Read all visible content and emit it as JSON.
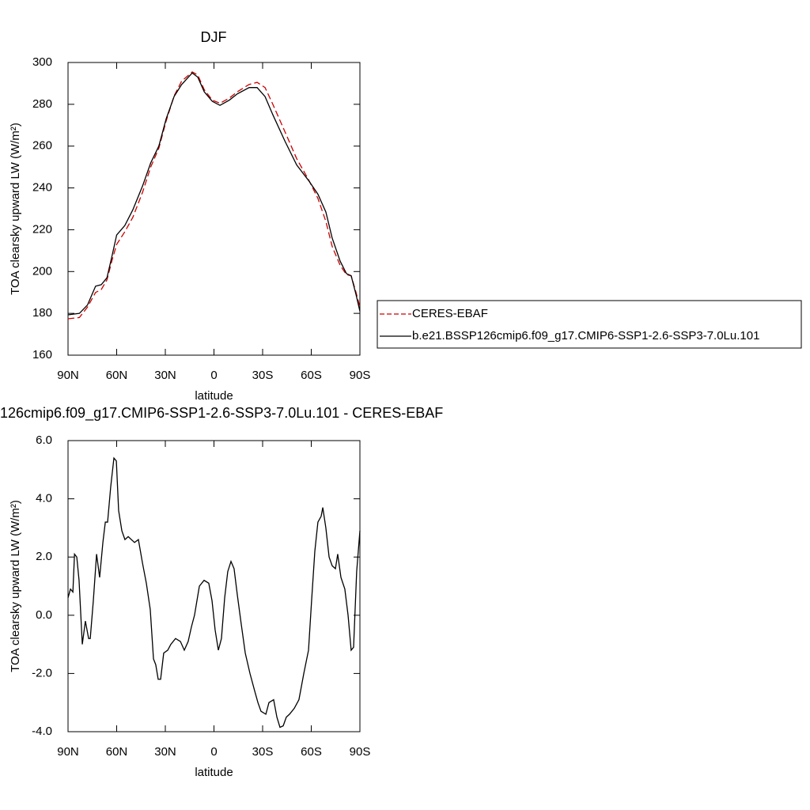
{
  "chart_data": [
    {
      "type": "line",
      "title": "DJF",
      "xlabel": "latitude",
      "ylabel": "TOA clearsky upward LW (W/m²)",
      "xlim": [
        90,
        -90
      ],
      "xticks": [
        {
          "value": 90,
          "label": "90N"
        },
        {
          "value": 60,
          "label": "60N"
        },
        {
          "value": 30,
          "label": "30N"
        },
        0,
        {
          "value": -30,
          "label": "30S"
        },
        {
          "value": -60,
          "label": "60S"
        },
        {
          "value": -90,
          "label": "90S"
        }
      ],
      "ylim": [
        160,
        300
      ],
      "yticks": [
        160,
        180,
        200,
        220,
        240,
        260,
        280,
        300
      ],
      "legend": "right",
      "x": [
        90,
        83,
        78,
        73,
        69.5,
        66,
        63,
        60,
        55,
        50,
        44,
        39,
        34,
        29.5,
        24.6,
        20,
        13.4,
        10,
        6,
        1,
        -3.7,
        -9.5,
        -14.4,
        -21.7,
        -26.6,
        -31.5,
        -36.3,
        -43.7,
        -51,
        -58.3,
        -64.1,
        -69,
        -72.9,
        -77.8,
        -81.7,
        -84.6,
        -87.6,
        -90
      ],
      "series": [
        {
          "name": "CERES-EBAF",
          "color": "#cc0000",
          "dash": "dashed",
          "values": [
            177.4,
            178,
            183,
            190,
            191.4,
            196,
            205,
            213,
            219,
            226,
            238,
            250,
            259,
            272,
            284,
            291,
            295.5,
            294,
            287,
            282,
            280.5,
            283,
            286,
            289.5,
            290.5,
            288,
            280,
            267,
            254,
            244,
            235,
            224,
            212,
            203,
            198.5,
            198,
            190,
            183
          ]
        },
        {
          "name": "b.e21.BSSP126cmip6.f09_g17.CMIP6-SSP1-2.6-SSP3-7.0Lu.101",
          "color": "#000000",
          "dash": "solid",
          "values": [
            179.3,
            180,
            184,
            193,
            193.7,
            197,
            207,
            217.5,
            222,
            229.6,
            241,
            252,
            260,
            273,
            283.7,
            289.4,
            295,
            293,
            286,
            281.4,
            279.5,
            282,
            285,
            288,
            288,
            283.7,
            275,
            262.5,
            251,
            243.6,
            237,
            228.5,
            216,
            205,
            199,
            198,
            189,
            181
          ]
        }
      ]
    },
    {
      "type": "line",
      "title": "126cmip6.f09_g17.CMIP6-SSP1-2.6-SSP3-7.0Lu.101 - CERES-EBAF",
      "xlabel": "latitude",
      "ylabel": "TOA clearsky upward LW (W/m²)",
      "xlim": [
        90,
        -90
      ],
      "xticks": [
        {
          "value": 90,
          "label": "90N"
        },
        {
          "value": 60,
          "label": "60N"
        },
        {
          "value": 30,
          "label": "30N"
        },
        0,
        {
          "value": -30,
          "label": "30S"
        },
        {
          "value": -60,
          "label": "60S"
        },
        {
          "value": -90,
          "label": "90S"
        }
      ],
      "ylim": [
        -4,
        6
      ],
      "yticks": [
        {
          "value": -4,
          "label": "-4.0"
        },
        {
          "value": -2,
          "label": "-2.0"
        },
        {
          "value": 0,
          "label": "0.0"
        },
        {
          "value": 2,
          "label": "2.0"
        },
        {
          "value": 4,
          "label": "4.0"
        },
        {
          "value": 6,
          "label": "6.0"
        }
      ],
      "x": [
        90,
        88.5,
        87,
        86,
        84.6,
        83.2,
        81.2,
        79.3,
        77.3,
        76.3,
        74.4,
        72.4,
        70.5,
        68.5,
        67,
        65.6,
        63.7,
        61.7,
        60.2,
        58.8,
        56.8,
        54.9,
        52.9,
        49,
        46.6,
        44.1,
        41.7,
        39.3,
        37.3,
        35.9,
        34.4,
        32.9,
        31,
        28.5,
        26.6,
        23.7,
        20.7,
        18.3,
        15.9,
        13.9,
        12,
        9,
        6.1,
        3.2,
        1.2,
        -0.7,
        -2.7,
        -4.6,
        -6.6,
        -8.5,
        -10.5,
        -12.4,
        -14.4,
        -16.8,
        -19.3,
        -22.2,
        -25.1,
        -27.1,
        -29,
        -32,
        -33.9,
        -36.8,
        -38.8,
        -40.7,
        -42.7,
        -44.6,
        -46.6,
        -49.5,
        -52.4,
        -55.4,
        -58.3,
        -60.2,
        -62.2,
        -64.1,
        -66.1,
        -67.1,
        -69,
        -71,
        -72.9,
        -74.9,
        -76.3,
        -78.3,
        -80.7,
        -82.7,
        -84.6,
        -86.1,
        -88,
        -90
      ],
      "color": "#000000",
      "values": [
        0.6,
        0.9,
        0.8,
        2.1,
        2.0,
        1.2,
        -1.0,
        -0.2,
        -0.8,
        -0.8,
        0.5,
        2.1,
        1.3,
        2.5,
        3.2,
        3.2,
        4.4,
        5.4,
        5.3,
        3.6,
        2.9,
        2.6,
        2.7,
        2.5,
        2.6,
        1.8,
        1.1,
        0.2,
        -1.5,
        -1.7,
        -2.2,
        -2.2,
        -1.3,
        -1.2,
        -1.0,
        -0.8,
        -0.9,
        -1.2,
        -0.9,
        -0.4,
        0,
        1.0,
        1.2,
        1.1,
        0.5,
        -0.5,
        -1.2,
        -0.8,
        0.6,
        1.5,
        1.85,
        1.6,
        0.7,
        -0.3,
        -1.3,
        -2.0,
        -2.6,
        -3.0,
        -3.3,
        -3.4,
        -3.0,
        -2.9,
        -3.5,
        -3.85,
        -3.8,
        -3.5,
        -3.4,
        -3.2,
        -2.9,
        -2.0,
        -1.2,
        0.5,
        2.2,
        3.2,
        3.4,
        3.7,
        3.0,
        2.0,
        1.7,
        1.6,
        2.1,
        1.3,
        0.9,
        0.0,
        -1.2,
        -1.1,
        1.5,
        2.9
      ]
    }
  ]
}
